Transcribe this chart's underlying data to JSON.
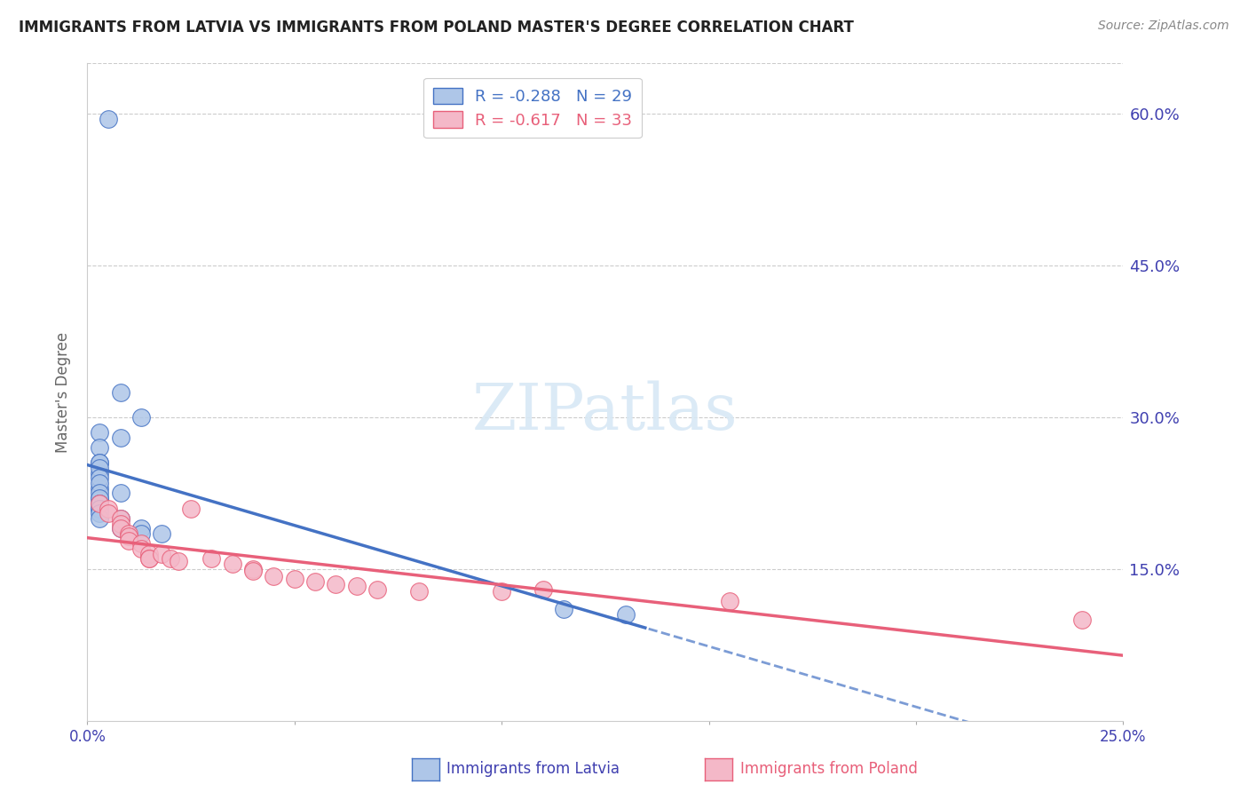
{
  "title": "IMMIGRANTS FROM LATVIA VS IMMIGRANTS FROM POLAND MASTER'S DEGREE CORRELATION CHART",
  "source": "Source: ZipAtlas.com",
  "ylabel": "Master's Degree",
  "xlim": [
    0.0,
    0.25
  ],
  "ylim": [
    0.0,
    0.65
  ],
  "yticks": [
    0.0,
    0.15,
    0.3,
    0.45,
    0.6
  ],
  "ytick_labels": [
    "",
    "15.0%",
    "30.0%",
    "45.0%",
    "60.0%"
  ],
  "xticks": [
    0.0,
    0.05,
    0.1,
    0.15,
    0.2,
    0.25
  ],
  "xtick_labels": [
    "0.0%",
    "",
    "",
    "",
    "",
    "25.0%"
  ],
  "legend_entries": [
    {
      "label": "R = -0.288   N = 29"
    },
    {
      "label": "R = -0.617   N = 33"
    }
  ],
  "legend_labels": [
    "Immigrants from Latvia",
    "Immigrants from Poland"
  ],
  "latvia_dots": [
    [
      0.005,
      0.595
    ],
    [
      0.008,
      0.325
    ],
    [
      0.003,
      0.285
    ],
    [
      0.008,
      0.28
    ],
    [
      0.003,
      0.27
    ],
    [
      0.003,
      0.255
    ],
    [
      0.013,
      0.3
    ],
    [
      0.003,
      0.245
    ],
    [
      0.003,
      0.23
    ],
    [
      0.003,
      0.22
    ],
    [
      0.003,
      0.255
    ],
    [
      0.003,
      0.25
    ],
    [
      0.003,
      0.24
    ],
    [
      0.003,
      0.235
    ],
    [
      0.003,
      0.225
    ],
    [
      0.008,
      0.225
    ],
    [
      0.003,
      0.22
    ],
    [
      0.003,
      0.215
    ],
    [
      0.003,
      0.21
    ],
    [
      0.003,
      0.21
    ],
    [
      0.003,
      0.205
    ],
    [
      0.003,
      0.2
    ],
    [
      0.008,
      0.2
    ],
    [
      0.008,
      0.19
    ],
    [
      0.013,
      0.19
    ],
    [
      0.013,
      0.185
    ],
    [
      0.018,
      0.185
    ],
    [
      0.115,
      0.11
    ],
    [
      0.13,
      0.105
    ]
  ],
  "poland_dots": [
    [
      0.003,
      0.215
    ],
    [
      0.005,
      0.21
    ],
    [
      0.005,
      0.205
    ],
    [
      0.008,
      0.2
    ],
    [
      0.008,
      0.195
    ],
    [
      0.008,
      0.19
    ],
    [
      0.01,
      0.185
    ],
    [
      0.01,
      0.182
    ],
    [
      0.01,
      0.178
    ],
    [
      0.013,
      0.175
    ],
    [
      0.013,
      0.17
    ],
    [
      0.015,
      0.165
    ],
    [
      0.015,
      0.16
    ],
    [
      0.015,
      0.16
    ],
    [
      0.018,
      0.165
    ],
    [
      0.02,
      0.16
    ],
    [
      0.022,
      0.158
    ],
    [
      0.025,
      0.21
    ],
    [
      0.03,
      0.16
    ],
    [
      0.035,
      0.155
    ],
    [
      0.04,
      0.15
    ],
    [
      0.04,
      0.148
    ],
    [
      0.045,
      0.143
    ],
    [
      0.05,
      0.14
    ],
    [
      0.055,
      0.138
    ],
    [
      0.06,
      0.135
    ],
    [
      0.065,
      0.133
    ],
    [
      0.07,
      0.13
    ],
    [
      0.08,
      0.128
    ],
    [
      0.1,
      0.128
    ],
    [
      0.11,
      0.13
    ],
    [
      0.155,
      0.118
    ],
    [
      0.24,
      0.1
    ]
  ],
  "latvia_line_color": "#4472c4",
  "poland_line_color": "#e8607a",
  "latvia_dot_color": "#aec6e8",
  "poland_dot_color": "#f4b8c8",
  "background_color": "#ffffff",
  "grid_color": "#cccccc",
  "title_color": "#222222",
  "axis_label_color": "#4040b0"
}
